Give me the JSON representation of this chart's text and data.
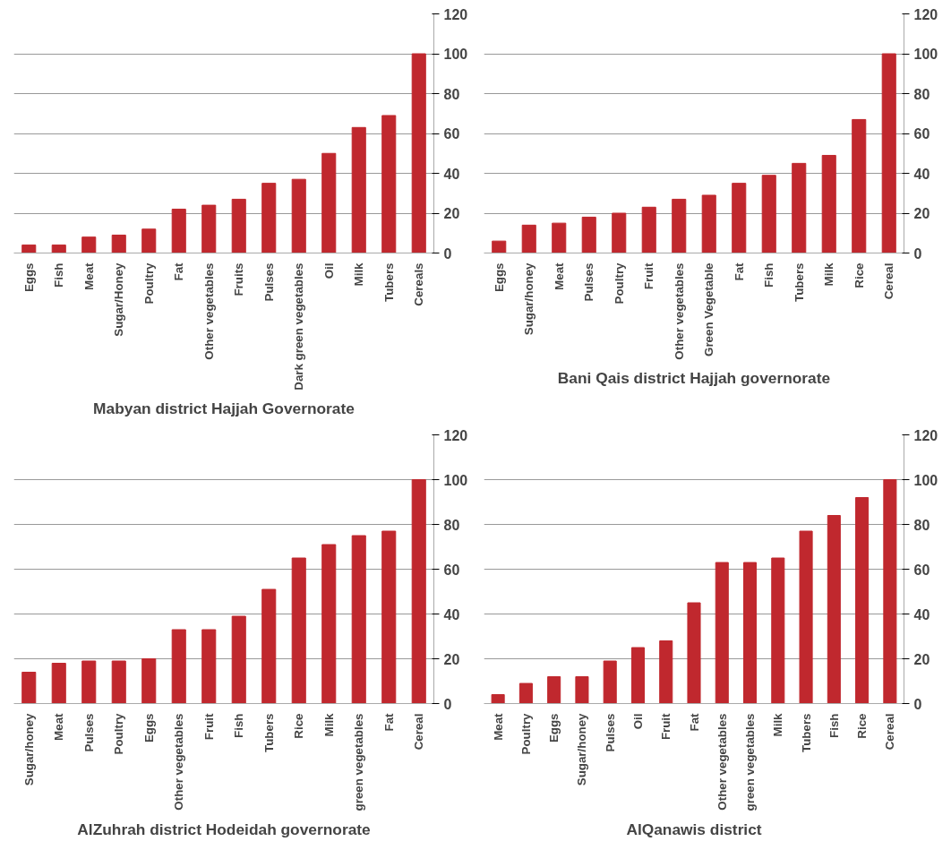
{
  "chart_data": [
    {
      "type": "bar",
      "title": "Mabyan district Hajjah Governorate",
      "categories": [
        "Eggs",
        "Fish",
        "Meat",
        "Sugar/Honey",
        "Poultry",
        "Fat",
        "Other vegetables",
        "Fruits",
        "Pulses",
        "Dark green vegetables",
        "Oil",
        "Milk",
        "Tubers",
        "Cereals"
      ],
      "values": [
        4,
        4,
        8,
        9,
        12,
        22,
        24,
        27,
        35,
        37,
        50,
        63,
        69,
        100
      ],
      "color": "#c0282e",
      "ylim": [
        0,
        120
      ],
      "yticks": [
        0,
        20,
        40,
        60,
        80,
        100,
        120
      ],
      "grid": "y"
    },
    {
      "type": "bar",
      "title": "Bani Qais district Hajjah governorate",
      "categories": [
        "Eggs",
        "Sugar/honey",
        "Meat",
        "Pulses",
        "Poultry",
        "Fruit",
        "Other vegetables",
        "Green Vegetable",
        "Fat",
        "Fish",
        "Tubers",
        "Milk",
        "Rice",
        "Cereal"
      ],
      "values": [
        6,
        14,
        15,
        18,
        20,
        23,
        27,
        29,
        35,
        39,
        45,
        49,
        67,
        100
      ],
      "color": "#c0282e",
      "ylim": [
        0,
        120
      ],
      "yticks": [
        0,
        20,
        40,
        60,
        80,
        100,
        120
      ],
      "grid": "y"
    },
    {
      "type": "bar",
      "title": "AlZuhrah district Hodeidah governorate",
      "categories": [
        "Sugar/honey",
        "Meat",
        "Pulses",
        "Poultry",
        "Eggs",
        "Other vegetables",
        "Fruit",
        "Fish",
        "Tubers",
        "Rice",
        "Milk",
        "green vegetables",
        "Fat",
        "Cereal"
      ],
      "values": [
        14,
        18,
        19,
        19,
        20,
        33,
        33,
        39,
        51,
        65,
        71,
        75,
        77,
        100
      ],
      "color": "#c0282e",
      "ylim": [
        0,
        120
      ],
      "yticks": [
        0,
        20,
        40,
        60,
        80,
        100,
        120
      ],
      "grid": "y"
    },
    {
      "type": "bar",
      "title": "AlQanawis district",
      "categories": [
        "Meat",
        "Poultry",
        "Eggs",
        "Sugar/honey",
        "Pulses",
        "Oil",
        "Fruit",
        "Fat",
        "Other vegetables",
        "green vegetables",
        "Milk",
        "Tubers",
        "Fish",
        "Rice",
        "Cereal"
      ],
      "values": [
        4,
        9,
        12,
        12,
        19,
        25,
        28,
        45,
        63,
        63,
        65,
        77,
        84,
        92,
        100
      ],
      "color": "#c0282e",
      "ylim": [
        0,
        120
      ],
      "yticks": [
        0,
        20,
        40,
        60,
        80,
        100,
        120
      ],
      "grid": "y"
    }
  ]
}
